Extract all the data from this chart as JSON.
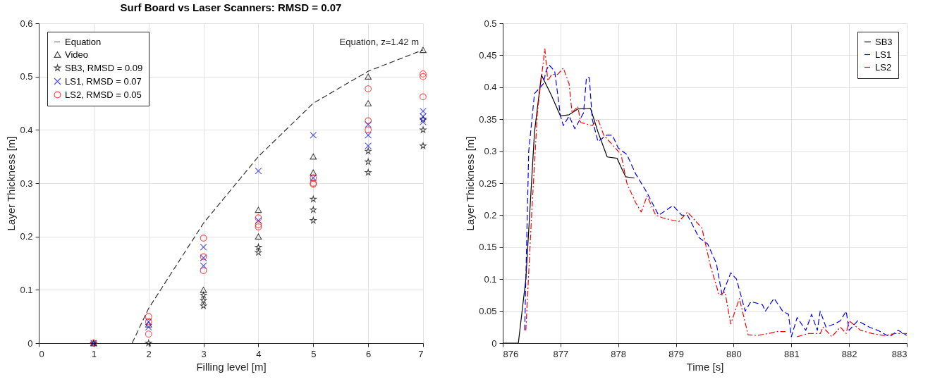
{
  "chart_data": [
    {
      "type": "scatter",
      "title": "Surf Board vs Laser Scanners: RMSD = 0.07",
      "xlabel": "Filling level [m]",
      "ylabel": "Layer Thickness [m]",
      "xlim": [
        0,
        7
      ],
      "xticks": [
        0,
        1,
        2,
        3,
        4,
        5,
        6,
        7
      ],
      "ylim": [
        0,
        0.6
      ],
      "yticks": [
        0,
        0.1,
        0.2,
        0.3,
        0.4,
        0.5,
        0.6
      ],
      "grid": true,
      "legend": "top left",
      "annotations": [
        {
          "text": "Equation, z=1.42 m",
          "x": 7,
          "y": 0.55
        }
      ],
      "series": [
        {
          "name": "Equation",
          "type": "line",
          "line_style": "dashed",
          "marker": "none",
          "color": "#333333",
          "x": [
            1.7,
            2,
            3,
            4,
            5,
            6,
            7
          ],
          "values": [
            0,
            0.065,
            0.225,
            0.35,
            0.45,
            0.51,
            0.55
          ]
        },
        {
          "name": "Video",
          "marker": "triangle",
          "color": "#000000",
          "x": [
            1,
            2,
            3,
            4,
            4,
            5,
            5,
            6,
            6,
            7
          ],
          "values": [
            0,
            0.035,
            0.1,
            0.25,
            0.2,
            0.35,
            0.32,
            0.5,
            0.45,
            0.55
          ]
        },
        {
          "name": "SB3, RMSD = 0.09",
          "marker": "star",
          "color": "#000000",
          "x": [
            1,
            2,
            3,
            3,
            3,
            4,
            4,
            5,
            5,
            5,
            6,
            6,
            6,
            7,
            7,
            7
          ],
          "values": [
            0,
            0,
            0.09,
            0.08,
            0.07,
            0.18,
            0.17,
            0.27,
            0.25,
            0.23,
            0.36,
            0.34,
            0.32,
            0.42,
            0.4,
            0.37
          ]
        },
        {
          "name": "LS1, RMSD = 0.07",
          "marker": "cross",
          "color": "#0000ff",
          "x": [
            1,
            2,
            2,
            3,
            3,
            3,
            4,
            4,
            5,
            5,
            6,
            6,
            6,
            7,
            7,
            7
          ],
          "values": [
            0,
            0.04,
            0.03,
            0.18,
            0.16,
            0.145,
            0.323,
            0.23,
            0.39,
            0.31,
            0.41,
            0.39,
            0.37,
            0.435,
            0.425,
            0.415
          ]
        },
        {
          "name": "LS2, RMSD = 0.05",
          "marker": "circle",
          "color": "#ff0000",
          "x": [
            1,
            2,
            2,
            2,
            3,
            3,
            3,
            4,
            4,
            4,
            5,
            5,
            5,
            6,
            6,
            6,
            7,
            7,
            7
          ],
          "values": [
            0,
            0.05,
            0.04,
            0.017,
            0.197,
            0.162,
            0.136,
            0.235,
            0.222,
            0.218,
            0.31,
            0.3,
            0.298,
            0.477,
            0.417,
            0.4,
            0.505,
            0.5,
            0.462
          ]
        }
      ]
    },
    {
      "type": "line",
      "xlabel": "Time [s]",
      "ylabel": "Layer Thickness [m]",
      "xlim": [
        876,
        883
      ],
      "xticks": [
        876,
        877,
        878,
        879,
        880,
        881,
        882,
        883
      ],
      "ylim": [
        0,
        0.5
      ],
      "yticks": [
        0,
        0.05,
        0.1,
        0.15,
        0.2,
        0.25,
        0.3,
        0.35,
        0.4,
        0.45,
        0.5
      ],
      "grid": true,
      "legend": "top right",
      "series": [
        {
          "name": "SB3",
          "line_style": "solid",
          "color": "#000000",
          "x": [
            876,
            876.27,
            876.4,
            876.55,
            876.67,
            876.84,
            877.0,
            877.15,
            877.3,
            877.52,
            877.65,
            877.81,
            877.98,
            878.05,
            878.13,
            878.28
          ],
          "values": [
            0,
            0,
            0.1,
            0.33,
            0.419,
            0.388,
            0.355,
            0.357,
            0.366,
            0.367,
            0.33,
            0.291,
            0.289,
            0.275,
            0.26,
            0.258
          ]
        },
        {
          "name": "LS1",
          "line_style": "dashed",
          "color": "#0000ff",
          "x": [
            876.38,
            876.45,
            876.55,
            876.7,
            876.75,
            876.8,
            876.9,
            877.0,
            877.05,
            877.15,
            877.25,
            877.4,
            877.45,
            877.5,
            877.55,
            877.65,
            877.8,
            877.9,
            878.0,
            878.15,
            878.3,
            878.5,
            878.7,
            878.95,
            879.1,
            879.2,
            879.4,
            879.55,
            879.7,
            879.8,
            879.95,
            880.05,
            880.2,
            880.3,
            880.5,
            880.55,
            880.7,
            880.85,
            880.95,
            881.0,
            881.1,
            881.25,
            881.35,
            881.45,
            881.5,
            881.6,
            881.75,
            881.85,
            881.95,
            882.0,
            882.15,
            882.35,
            882.5,
            882.7,
            882.85,
            883.0
          ],
          "values": [
            0.02,
            0.3,
            0.39,
            0.405,
            0.425,
            0.435,
            0.425,
            0.355,
            0.34,
            0.355,
            0.335,
            0.36,
            0.415,
            0.415,
            0.35,
            0.315,
            0.325,
            0.325,
            0.305,
            0.295,
            0.265,
            0.235,
            0.2,
            0.215,
            0.2,
            0.2,
            0.165,
            0.155,
            0.125,
            0.075,
            0.11,
            0.1,
            0.05,
            0.065,
            0.06,
            0.05,
            0.07,
            0.05,
            0.045,
            0.01,
            0.04,
            0.02,
            0.045,
            0.02,
            0.05,
            0.025,
            0.03,
            0.035,
            0.05,
            0.02,
            0.035,
            0.025,
            0.02,
            0.01,
            0.02,
            0.012
          ]
        },
        {
          "name": "LS2",
          "line_style": "dashdot",
          "color": "#ff0000",
          "x": [
            876.4,
            876.5,
            876.6,
            876.65,
            876.73,
            876.78,
            876.85,
            876.95,
            877.05,
            877.15,
            877.2,
            877.3,
            877.35,
            877.55,
            877.65,
            877.75,
            877.9,
            878.05,
            878.15,
            878.3,
            878.4,
            878.5,
            878.65,
            878.8,
            879.05,
            879.2,
            879.45,
            879.6,
            879.75,
            879.85,
            879.95,
            880.1,
            880.25,
            880.4,
            880.6,
            880.75,
            880.9,
            881.0,
            881.1,
            881.3,
            881.5,
            881.55,
            881.7,
            881.85,
            881.95,
            882.0,
            882.2,
            882.4,
            882.6,
            882.8,
            883.0
          ],
          "values": [
            0.02,
            0.2,
            0.36,
            0.4,
            0.46,
            0.41,
            0.42,
            0.42,
            0.43,
            0.405,
            0.36,
            0.37,
            0.345,
            0.34,
            0.35,
            0.325,
            0.31,
            0.295,
            0.25,
            0.22,
            0.205,
            0.23,
            0.2,
            0.195,
            0.19,
            0.205,
            0.18,
            0.12,
            0.075,
            0.08,
            0.03,
            0.07,
            0.013,
            0.012,
            0.015,
            0.018,
            0.018,
            null,
            0.01,
            0.015,
            0.015,
            0.025,
            0.01,
            0.025,
            0.015,
            0.035,
            0.02,
            0.015,
            0.012,
            0.015,
            0.015
          ]
        }
      ]
    }
  ]
}
